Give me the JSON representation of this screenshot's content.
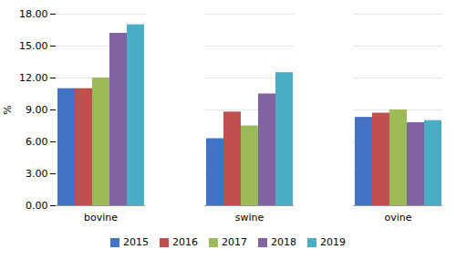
{
  "chart_data": {
    "type": "bar",
    "categories": [
      "bovine",
      "swine",
      "ovine"
    ],
    "series": [
      {
        "name": "2015",
        "color": "#4472C4",
        "values": [
          11.0,
          6.3,
          8.3
        ]
      },
      {
        "name": "2016",
        "color": "#C0504D",
        "values": [
          11.0,
          8.8,
          8.7
        ]
      },
      {
        "name": "2017",
        "color": "#9BBB59",
        "values": [
          12.0,
          7.5,
          9.0
        ]
      },
      {
        "name": "2018",
        "color": "#8064A2",
        "values": [
          16.2,
          10.5,
          7.8
        ]
      },
      {
        "name": "2019",
        "color": "#4BACC6",
        "values": [
          17.0,
          12.5,
          8.0
        ]
      }
    ],
    "ylabel": "%",
    "ylim": [
      0,
      18.0
    ],
    "yticks": [
      {
        "value": 0.0,
        "label": "0.00"
      },
      {
        "value": 3.0,
        "label": "3.00"
      },
      {
        "value": 6.0,
        "label": "6.00"
      },
      {
        "value": 9.0,
        "label": "9.00"
      },
      {
        "value": 12.0,
        "label": "12.00"
      },
      {
        "value": 15.0,
        "label": "15.00"
      },
      {
        "value": 18.0,
        "label": "18.00"
      }
    ],
    "grid": true,
    "legend": "bottom"
  }
}
